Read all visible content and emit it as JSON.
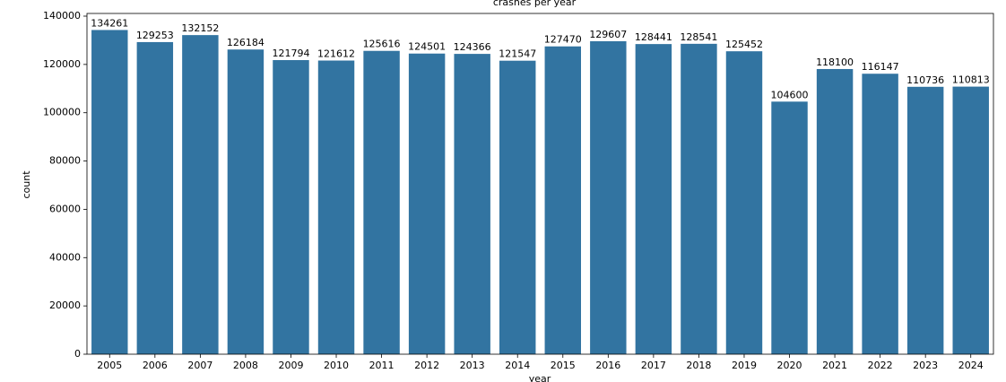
{
  "chart_data": {
    "type": "bar",
    "title": "crashes per year",
    "x_label": "year",
    "y_label": "count",
    "categories": [
      "2005",
      "2006",
      "2007",
      "2008",
      "2009",
      "2010",
      "2011",
      "2012",
      "2013",
      "2014",
      "2015",
      "2016",
      "2017",
      "2018",
      "2019",
      "2020",
      "2021",
      "2022",
      "2023",
      "2024"
    ],
    "values": [
      134261,
      129253,
      132152,
      126184,
      121794,
      121612,
      125616,
      124501,
      124366,
      121547,
      127470,
      129607,
      128441,
      128541,
      125452,
      104600,
      118100,
      116147,
      110736,
      110813
    ],
    "color": "#3274a1",
    "ylim": [
      0,
      140000
    ],
    "yticks": [
      0,
      20000,
      40000,
      60000,
      80000,
      100000,
      120000,
      140000
    ]
  }
}
